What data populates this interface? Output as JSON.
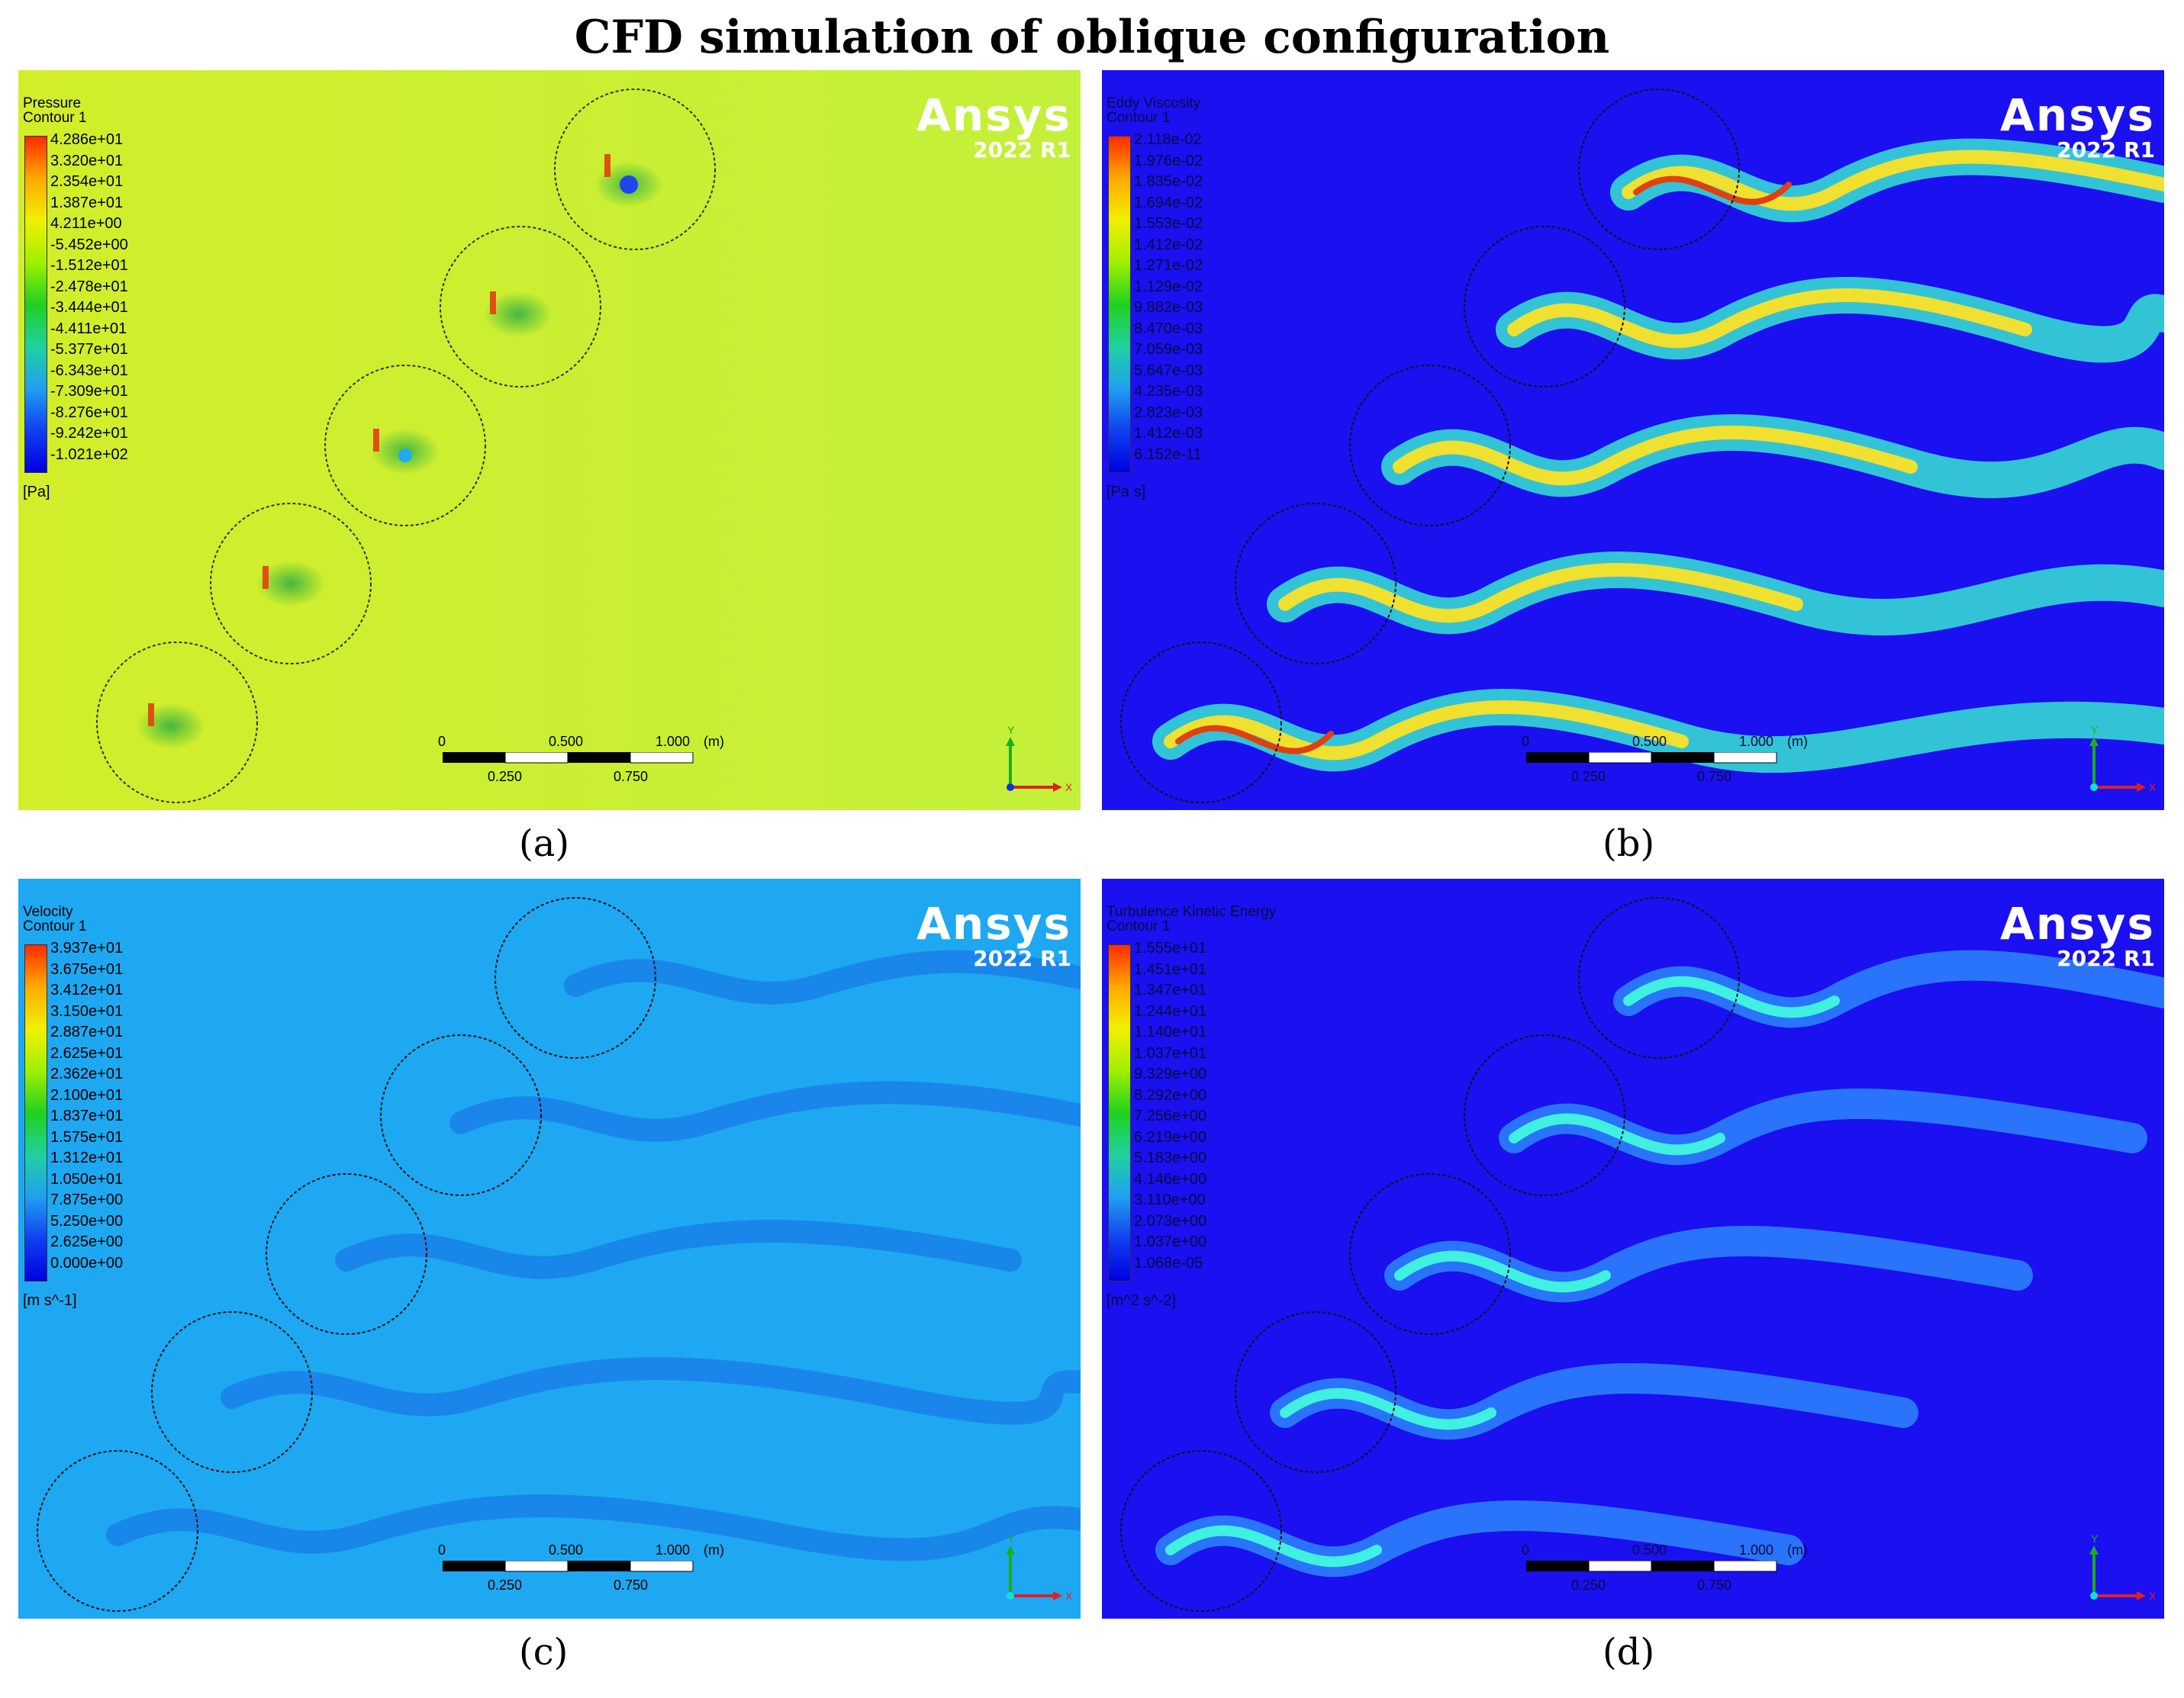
{
  "title": "CFD simulation of oblique configuration",
  "panels": [
    {
      "id": "a",
      "label": "(a)",
      "variable": "Pressure",
      "contour": "Contour 1",
      "unit": "[Pa]",
      "ticks": [
        "4.286e+01",
        "3.320e+01",
        "2.354e+01",
        "1.387e+01",
        "4.211e+00",
        "-5.452e+00",
        "-1.512e+01",
        "-2.478e+01",
        "-3.444e+01",
        "-4.411e+01",
        "-5.377e+01",
        "-6.343e+01",
        "-7.309e+01",
        "-8.276e+01",
        "-9.242e+01",
        "-1.021e+02"
      ],
      "background": "#c9ef2c",
      "label_color": "#000000"
    },
    {
      "id": "b",
      "label": "(b)",
      "variable": "Eddy Viscosity",
      "contour": "Contour 1",
      "unit": "[Pa s]",
      "ticks": [
        "2.118e-02",
        "1.976e-02",
        "1.835e-02",
        "1.694e-02",
        "1.553e-02",
        "1.412e-02",
        "1.271e-02",
        "1.129e-02",
        "9.882e-03",
        "8.470e-03",
        "7.059e-03",
        "5.647e-03",
        "4.235e-03",
        "2.823e-03",
        "1.412e-03",
        "6.152e-11"
      ],
      "background": "#1a10f0",
      "label_color": "#0a0a40"
    },
    {
      "id": "c",
      "label": "(c)",
      "variable": "Velocity",
      "contour": "Contour 1",
      "unit": "[m s^-1]",
      "ticks": [
        "3.937e+01",
        "3.675e+01",
        "3.412e+01",
        "3.150e+01",
        "2.887e+01",
        "2.625e+01",
        "2.362e+01",
        "2.100e+01",
        "1.837e+01",
        "1.575e+01",
        "1.312e+01",
        "1.050e+01",
        "7.875e+00",
        "5.250e+00",
        "2.625e+00",
        "0.000e+00"
      ],
      "background": "#1ea8f2",
      "label_color": "#000000"
    },
    {
      "id": "d",
      "label": "(d)",
      "variable": "Turbulence Kinetic Energy",
      "contour": "Contour 1",
      "unit": "[m^2 s^-2]",
      "ticks": [
        "1.555e+01",
        "1.451e+01",
        "1.347e+01",
        "1.244e+01",
        "1.140e+01",
        "1.037e+01",
        "9.329e+00",
        "8.292e+00",
        "7.256e+00",
        "6.219e+00",
        "5.183e+00",
        "4.146e+00",
        "3.110e+00",
        "2.073e+00",
        "1.037e+00",
        "1.068e-05"
      ],
      "background": "#1a10f0",
      "label_color": "#0a0a40"
    }
  ],
  "logo": {
    "name": "Ansys",
    "version": "2022 R1"
  },
  "scale_bar": {
    "top_labels": [
      "0",
      "0.500",
      "1.000",
      "(m)"
    ],
    "bottom_labels": [
      "0.250",
      "0.750"
    ]
  },
  "axes": {
    "y": "Y",
    "x": "X"
  }
}
